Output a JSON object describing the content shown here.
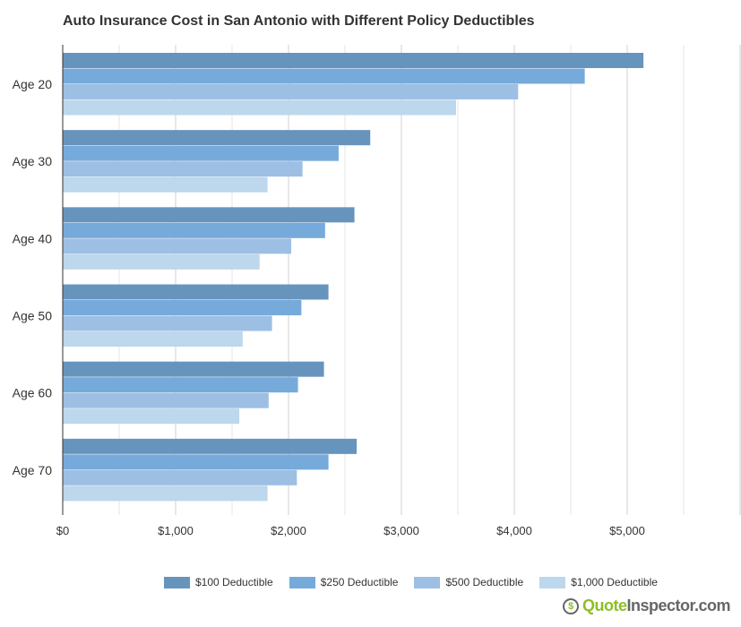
{
  "chart_data": {
    "type": "bar",
    "orientation": "horizontal",
    "title": "Auto Insurance Cost in San Antonio with Different Policy Deductibles",
    "categories": [
      "Age 20",
      "Age 30",
      "Age 40",
      "Age 50",
      "Age 60",
      "Age 70"
    ],
    "series": [
      {
        "name": "$100 Deductible",
        "color": "#6794bd",
        "values": [
          5140,
          2720,
          2580,
          2350,
          2310,
          2600
        ]
      },
      {
        "name": "$250 Deductible",
        "color": "#76aadb",
        "values": [
          4620,
          2440,
          2320,
          2110,
          2080,
          2350
        ]
      },
      {
        "name": "$500 Deductible",
        "color": "#9dbfe4",
        "values": [
          4030,
          2120,
          2020,
          1850,
          1820,
          2070
        ]
      },
      {
        "name": "$1,000 Deductible",
        "color": "#bdd7ec",
        "values": [
          3480,
          1810,
          1740,
          1590,
          1560,
          1810
        ]
      }
    ],
    "xlim": [
      0,
      6000
    ],
    "x_ticks": [
      "$0",
      "$1,000",
      "$2,000",
      "$3,000",
      "$4,000",
      "$5,000"
    ],
    "grid": true,
    "legend": "bottom"
  },
  "logo": {
    "part1": "Quote",
    "part2": "Inspector.com"
  }
}
